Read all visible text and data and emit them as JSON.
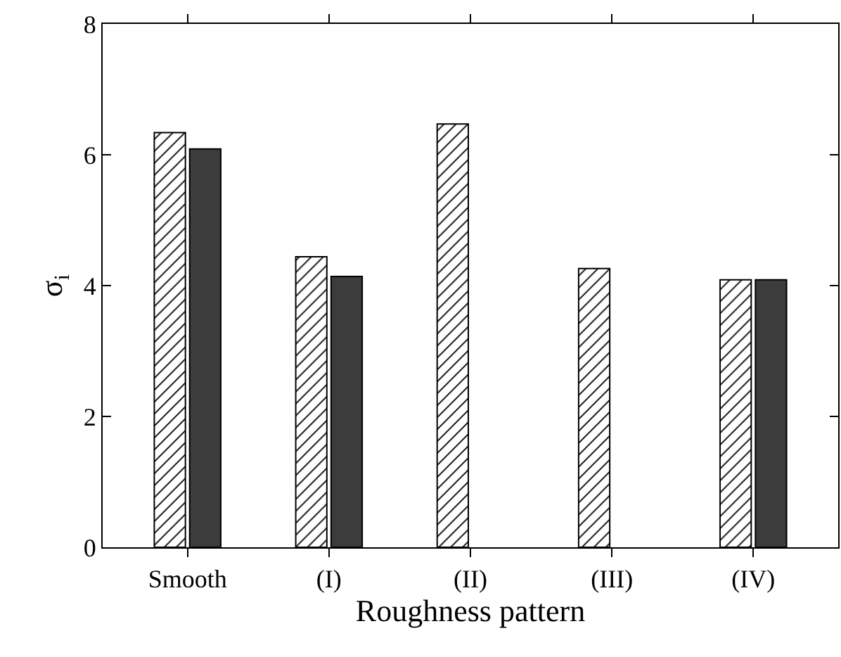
{
  "chart_data": {
    "type": "bar",
    "xlabel": "Roughness pattern",
    "ylabel": "σ$_{i}$",
    "categories": [
      "Smooth",
      "(I)",
      "(II)",
      "(III)",
      "(IV)"
    ],
    "series": [
      {
        "color": "#000000",
        "values": [
          6.34,
          4.44,
          6.47,
          4.26,
          4.09
        ]
      },
      {
        "color": "#3c3c3c",
        "values": [
          6.09,
          4.14,
          null,
          null,
          4.09
        ]
      }
    ],
    "ylim": [
      0,
      8
    ],
    "yticks": [
      0,
      2,
      4,
      6,
      8
    ]
  }
}
